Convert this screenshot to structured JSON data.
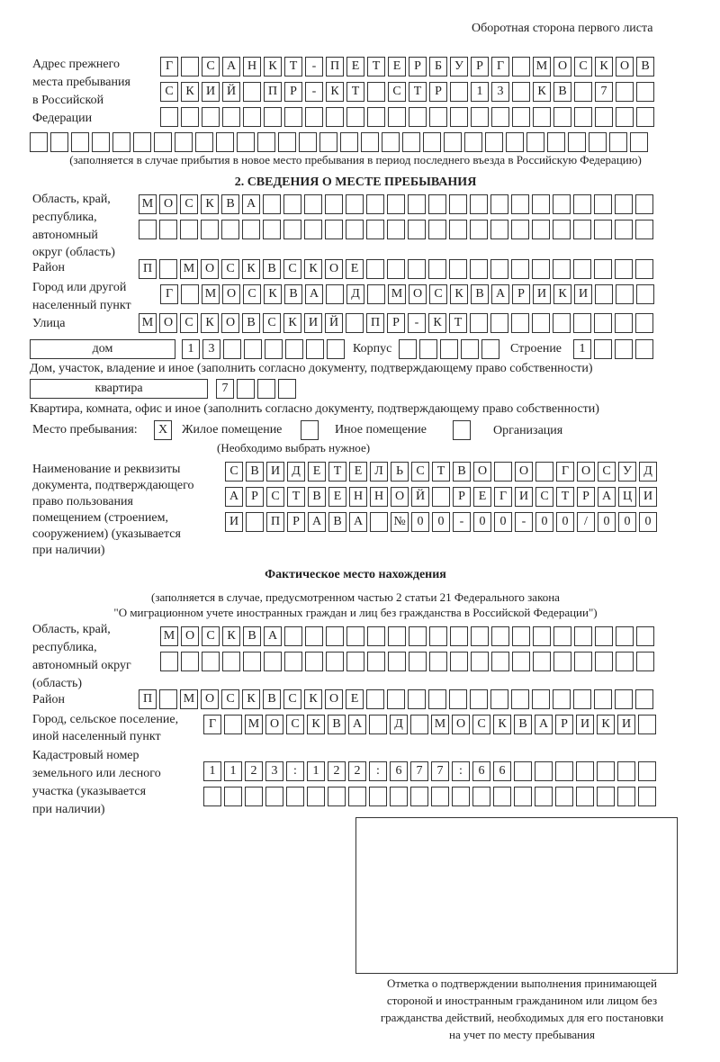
{
  "header_note": "Оборотная сторона первого листа",
  "prev_address": {
    "label": [
      "Адрес прежнего",
      "места пребывания",
      "в Российской",
      "Федерации"
    ],
    "rows": [
      [
        "Г",
        "",
        "С",
        "А",
        "Н",
        "К",
        "Т",
        "-",
        "П",
        "Е",
        "Т",
        "Е",
        "Р",
        "Б",
        "У",
        "Р",
        "Г",
        "",
        "М",
        "О",
        "С",
        "К",
        "О",
        "В"
      ],
      [
        "С",
        "К",
        "И",
        "Й",
        "",
        "П",
        "Р",
        "-",
        "К",
        "Т",
        "",
        "С",
        "Т",
        "Р",
        "",
        "1",
        "3",
        "",
        "К",
        "В",
        "",
        "7",
        "",
        ""
      ],
      [
        "",
        "",
        "",
        "",
        "",
        "",
        "",
        "",
        "",
        "",
        "",
        "",
        "",
        "",
        "",
        "",
        "",
        "",
        "",
        "",
        "",
        "",
        "",
        ""
      ],
      [
        "",
        "",
        "",
        "",
        "",
        "",
        "",
        "",
        "",
        "",
        "",
        "",
        "",
        "",
        "",
        "",
        "",
        "",
        "",
        "",
        "",
        "",
        "",
        "",
        "",
        "",
        "",
        "",
        "",
        ""
      ]
    ],
    "note": "(заполняется в случае прибытия в новое место пребывания в период последнего въезда в Российскую Федерацию)"
  },
  "section2": {
    "title": "2. СВЕДЕНИЯ О МЕСТЕ ПРЕБЫВАНИЯ",
    "region_label": [
      "Область, край,",
      "республика,",
      "автономный",
      "округ (область)"
    ],
    "region_rows": [
      [
        "М",
        "О",
        "С",
        "К",
        "В",
        "А",
        "",
        "",
        "",
        "",
        "",
        "",
        "",
        "",
        "",
        "",
        "",
        "",
        "",
        "",
        "",
        "",
        "",
        "",
        ""
      ],
      [
        "",
        "",
        "",
        "",
        "",
        "",
        "",
        "",
        "",
        "",
        "",
        "",
        "",
        "",
        "",
        "",
        "",
        "",
        "",
        "",
        "",
        "",
        "",
        "",
        ""
      ]
    ],
    "district_label": "Район",
    "district_row": [
      "П",
      "",
      "М",
      "О",
      "С",
      "К",
      "В",
      "С",
      "К",
      "О",
      "Е",
      "",
      "",
      "",
      "",
      "",
      "",
      "",
      "",
      "",
      "",
      "",
      "",
      "",
      ""
    ],
    "city_label": [
      "Город или другой",
      "населенный пункт"
    ],
    "city_row": [
      "Г",
      "",
      "М",
      "О",
      "С",
      "К",
      "В",
      "А",
      "",
      "Д",
      "",
      "М",
      "О",
      "С",
      "К",
      "В",
      "А",
      "Р",
      "И",
      "К",
      "И",
      "",
      "",
      ""
    ],
    "street_label": "Улица",
    "street_row": [
      "М",
      "О",
      "С",
      "К",
      "О",
      "В",
      "С",
      "К",
      "И",
      "Й",
      "",
      "П",
      "Р",
      "-",
      "К",
      "Т",
      "",
      "",
      "",
      "",
      "",
      "",
      "",
      "",
      ""
    ],
    "house_type": "дом",
    "house_row": [
      "1",
      "3",
      "",
      "",
      "",
      "",
      "",
      ""
    ],
    "korpus_label": "Корпус",
    "korpus_row": [
      "",
      "",
      "",
      "",
      ""
    ],
    "building_label": "Строение",
    "building_row": [
      "1",
      "",
      "",
      ""
    ],
    "house_caption": "Дом, участок, владение и иное (заполнить согласно документу, подтверждающему право собственности)",
    "apt_type": "квартира",
    "apt_row": [
      "7",
      "",
      "",
      ""
    ],
    "apt_caption": "Квартира, комната, офис и иное (заполнить согласно документу, подтверждающему право собственности)",
    "stay_label": "Место пребывания:",
    "options": [
      {
        "label": "Жилое помещение",
        "mark": "X"
      },
      {
        "label": "Иное помещение",
        "mark": ""
      },
      {
        "label": "Организация",
        "mark": ""
      }
    ],
    "choose_note": "(Необходимо выбрать нужное)",
    "doc_label": [
      "Наименование и реквизиты",
      "документа, подтверждающего",
      "право пользования",
      "помещением (строением,",
      "сооружением) (указывается",
      "при наличии)"
    ],
    "doc_rows": [
      [
        "С",
        "В",
        "И",
        "Д",
        "Е",
        "Т",
        "Е",
        "Л",
        "Ь",
        "С",
        "Т",
        "В",
        "О",
        "",
        "О",
        "",
        "Г",
        "О",
        "С",
        "У",
        "Д"
      ],
      [
        "А",
        "Р",
        "С",
        "Т",
        "В",
        "Е",
        "Н",
        "Н",
        "О",
        "Й",
        "",
        "Р",
        "Е",
        "Г",
        "И",
        "С",
        "Т",
        "Р",
        "А",
        "Ц",
        "И"
      ],
      [
        "И",
        "",
        "П",
        "Р",
        "А",
        "В",
        "А",
        "",
        "№",
        "0",
        "0",
        "-",
        "0",
        "0",
        "-",
        "0",
        "0",
        "/",
        "0",
        "0",
        "0"
      ]
    ]
  },
  "actual": {
    "title": "Фактическое место нахождения",
    "note": [
      "(заполняется в случае, предусмотренном частью 2 статьи 21 Федерального закона",
      "\"О миграционном учете иностранных граждан и лиц без гражданства в Российской Федерации\")"
    ],
    "region_label": [
      "Область, край,",
      "республика,",
      "автономный округ",
      "(область)"
    ],
    "region_rows": [
      [
        "М",
        "О",
        "С",
        "К",
        "В",
        "А",
        "",
        "",
        "",
        "",
        "",
        "",
        "",
        "",
        "",
        "",
        "",
        "",
        "",
        "",
        "",
        "",
        "",
        ""
      ],
      [
        "",
        "",
        "",
        "",
        "",
        "",
        "",
        "",
        "",
        "",
        "",
        "",
        "",
        "",
        "",
        "",
        "",
        "",
        "",
        "",
        "",
        "",
        "",
        ""
      ]
    ],
    "district_label": "Район",
    "district_row": [
      "П",
      "",
      "М",
      "О",
      "С",
      "К",
      "В",
      "С",
      "К",
      "О",
      "Е",
      "",
      "",
      "",
      "",
      "",
      "",
      "",
      "",
      "",
      "",
      "",
      "",
      "",
      ""
    ],
    "city_label": [
      "Город, сельское поселение,",
      "иной населенный пункт"
    ],
    "city_row": [
      "Г",
      "",
      "М",
      "О",
      "С",
      "К",
      "В",
      "А",
      "",
      "Д",
      "",
      "М",
      "О",
      "С",
      "К",
      "В",
      "А",
      "Р",
      "И",
      "К",
      "И",
      ""
    ],
    "cadastral_label": [
      "Кадастровый номер",
      "земельного или лесного",
      "участка (указывается",
      "при наличии)"
    ],
    "cadastral_rows": [
      [
        "1",
        "1",
        "2",
        "3",
        ":",
        "1",
        "2",
        "2",
        ":",
        "6",
        "7",
        "7",
        ":",
        "6",
        "6",
        "",
        "",
        "",
        "",
        "",
        "",
        ""
      ],
      [
        "",
        "",
        "",
        "",
        "",
        "",
        "",
        "",
        "",
        "",
        "",
        "",
        "",
        "",
        "",
        "",
        "",
        "",
        "",
        "",
        "",
        ""
      ]
    ],
    "stamp_caption": [
      "Отметка о подтверждении выполнения принимающей",
      "стороной и иностранным гражданином или лицом без",
      "гражданства действий, необходимых для его постановки",
      "на учет по месту пребывания"
    ]
  }
}
